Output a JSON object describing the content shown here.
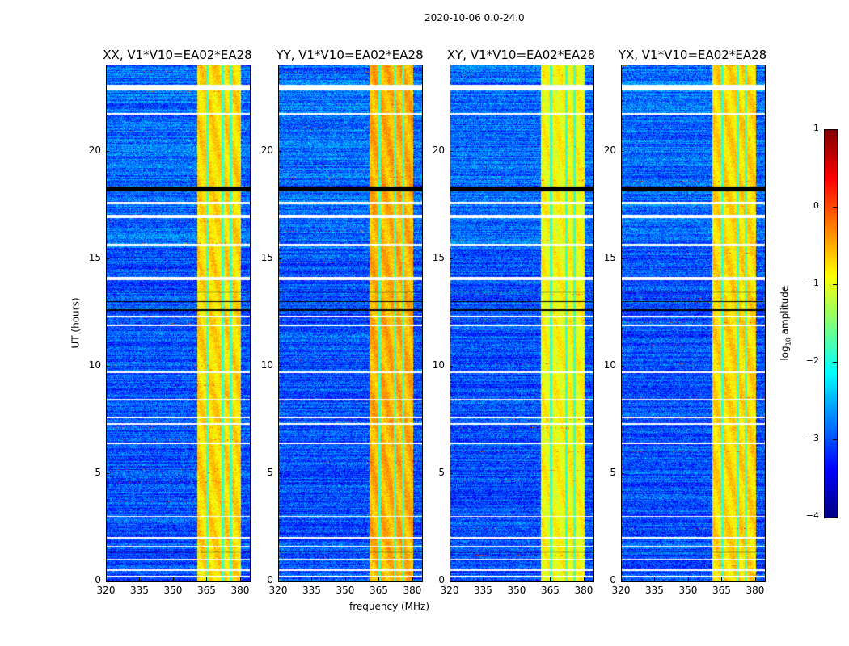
{
  "chart_data": {
    "type": "heatmap",
    "title": "2020-10-06 0.0-24.0",
    "xlabel": "frequency (MHz)",
    "ylabel": "UT (hours)",
    "xlim": [
      320,
      384
    ],
    "ylim": [
      0,
      24
    ],
    "xticks": [
      "320",
      "335",
      "350",
      "365",
      "380"
    ],
    "xtick_values": [
      320,
      335,
      350,
      365,
      380
    ],
    "yticks": [
      "0",
      "5",
      "10",
      "15",
      "20"
    ],
    "ytick_values": [
      0,
      5,
      10,
      15,
      20
    ],
    "panels": [
      {
        "title": "XX, V1*V10=EA02*EA28",
        "band_level": -0.7
      },
      {
        "title": "YY, V1*V10=EA02*EA28",
        "band_level": -0.5
      },
      {
        "title": "XY, V1*V10=EA02*EA28",
        "band_level": -0.9
      },
      {
        "title": "YX, V1*V10=EA02*EA28",
        "band_level": -0.7
      }
    ],
    "rfi_band_mhz": [
      360.5,
      380
    ],
    "band_gaps_mhz": [
      365,
      371.8,
      375.5
    ],
    "background_level": -3.0,
    "flagged_hours": [
      [
        22.85,
        23.1
      ],
      [
        21.7,
        21.8
      ],
      [
        17.55,
        17.65
      ],
      [
        16.9,
        17.05
      ],
      [
        15.6,
        15.7
      ],
      [
        14.0,
        14.15
      ],
      [
        12.3,
        12.35
      ],
      [
        11.85,
        11.95
      ],
      [
        9.7,
        9.75
      ],
      [
        8.45,
        8.5
      ],
      [
        7.6,
        7.65
      ],
      [
        7.3,
        7.35
      ],
      [
        6.4,
        6.45
      ],
      [
        3.0,
        3.05
      ],
      [
        2.0,
        2.05
      ],
      [
        1.6,
        1.65
      ],
      [
        1.0,
        1.05
      ],
      [
        0.5,
        0.55
      ],
      [
        0.2,
        0.25
      ]
    ],
    "dark_hours": [
      [
        18.15,
        18.35
      ],
      [
        13.45,
        13.5
      ],
      [
        13.0,
        13.05
      ],
      [
        12.6,
        12.65
      ],
      [
        7.8,
        7.82
      ],
      [
        1.35,
        1.38
      ]
    ],
    "colorbar": {
      "label": "log10 amplitude",
      "label_main": "log",
      "label_sub": "10",
      "label_rest": " amplitude",
      "range": [
        -4,
        1
      ],
      "ticks": [
        "1",
        "0",
        "−1",
        "−2",
        "−3",
        "−4"
      ],
      "tick_values": [
        1,
        0,
        -1,
        -2,
        -3,
        -4
      ],
      "colormap": "jet"
    }
  }
}
